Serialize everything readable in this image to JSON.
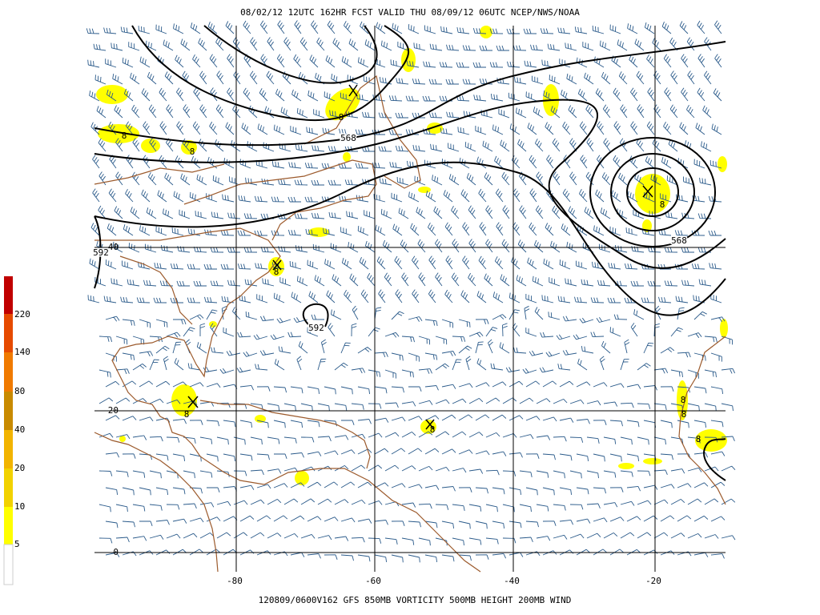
{
  "header": {
    "title": "08/02/12 12UTC  162HR  FCST VALID THU 08/09/12 06UTC  NCEP/NWS/NOAA"
  },
  "footer": {
    "caption": "120809/0600V162 GFS  850MB VORTICITY 500MB HEIGHT 200MB WIND"
  },
  "colorbar": {
    "labels": [
      220,
      140,
      80,
      40,
      20,
      10,
      5
    ]
  },
  "map": {
    "longitude_labels": [
      -80,
      -60,
      -40,
      -20
    ],
    "latitude_labels": [
      40,
      20,
      0
    ],
    "contour_labels": [
      "568",
      "568",
      "592",
      "592"
    ],
    "vorticity_labels": [
      "8",
      "8",
      "8",
      "8",
      "8",
      "8",
      "8",
      "8",
      "8",
      "8"
    ]
  }
}
